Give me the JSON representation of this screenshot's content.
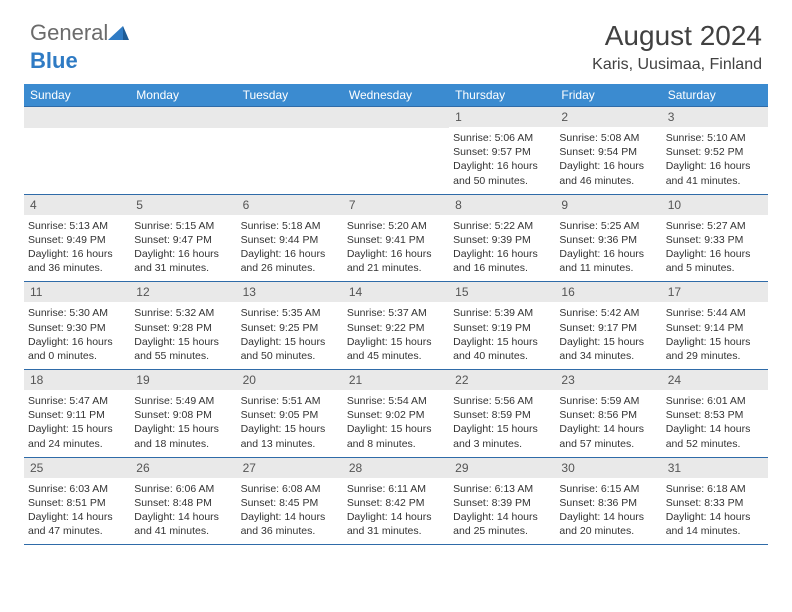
{
  "logo": {
    "text_general": "General",
    "text_blue": "Blue",
    "tri_color": "#2f7bc4"
  },
  "header": {
    "title": "August 2024",
    "location": "Karis, Uusimaa, Finland"
  },
  "colors": {
    "header_bg": "#3b8bd0",
    "header_text": "#ffffff",
    "daynum_bg": "#e9e9e9",
    "border": "#2f6ba8",
    "text": "#333333"
  },
  "weekdays": [
    "Sunday",
    "Monday",
    "Tuesday",
    "Wednesday",
    "Thursday",
    "Friday",
    "Saturday"
  ],
  "weeks": [
    [
      null,
      null,
      null,
      null,
      {
        "n": "1",
        "sr": "Sunrise: 5:06 AM",
        "ss": "Sunset: 9:57 PM",
        "dl": "Daylight: 16 hours and 50 minutes."
      },
      {
        "n": "2",
        "sr": "Sunrise: 5:08 AM",
        "ss": "Sunset: 9:54 PM",
        "dl": "Daylight: 16 hours and 46 minutes."
      },
      {
        "n": "3",
        "sr": "Sunrise: 5:10 AM",
        "ss": "Sunset: 9:52 PM",
        "dl": "Daylight: 16 hours and 41 minutes."
      }
    ],
    [
      {
        "n": "4",
        "sr": "Sunrise: 5:13 AM",
        "ss": "Sunset: 9:49 PM",
        "dl": "Daylight: 16 hours and 36 minutes."
      },
      {
        "n": "5",
        "sr": "Sunrise: 5:15 AM",
        "ss": "Sunset: 9:47 PM",
        "dl": "Daylight: 16 hours and 31 minutes."
      },
      {
        "n": "6",
        "sr": "Sunrise: 5:18 AM",
        "ss": "Sunset: 9:44 PM",
        "dl": "Daylight: 16 hours and 26 minutes."
      },
      {
        "n": "7",
        "sr": "Sunrise: 5:20 AM",
        "ss": "Sunset: 9:41 PM",
        "dl": "Daylight: 16 hours and 21 minutes."
      },
      {
        "n": "8",
        "sr": "Sunrise: 5:22 AM",
        "ss": "Sunset: 9:39 PM",
        "dl": "Daylight: 16 hours and 16 minutes."
      },
      {
        "n": "9",
        "sr": "Sunrise: 5:25 AM",
        "ss": "Sunset: 9:36 PM",
        "dl": "Daylight: 16 hours and 11 minutes."
      },
      {
        "n": "10",
        "sr": "Sunrise: 5:27 AM",
        "ss": "Sunset: 9:33 PM",
        "dl": "Daylight: 16 hours and 5 minutes."
      }
    ],
    [
      {
        "n": "11",
        "sr": "Sunrise: 5:30 AM",
        "ss": "Sunset: 9:30 PM",
        "dl": "Daylight: 16 hours and 0 minutes."
      },
      {
        "n": "12",
        "sr": "Sunrise: 5:32 AM",
        "ss": "Sunset: 9:28 PM",
        "dl": "Daylight: 15 hours and 55 minutes."
      },
      {
        "n": "13",
        "sr": "Sunrise: 5:35 AM",
        "ss": "Sunset: 9:25 PM",
        "dl": "Daylight: 15 hours and 50 minutes."
      },
      {
        "n": "14",
        "sr": "Sunrise: 5:37 AM",
        "ss": "Sunset: 9:22 PM",
        "dl": "Daylight: 15 hours and 45 minutes."
      },
      {
        "n": "15",
        "sr": "Sunrise: 5:39 AM",
        "ss": "Sunset: 9:19 PM",
        "dl": "Daylight: 15 hours and 40 minutes."
      },
      {
        "n": "16",
        "sr": "Sunrise: 5:42 AM",
        "ss": "Sunset: 9:17 PM",
        "dl": "Daylight: 15 hours and 34 minutes."
      },
      {
        "n": "17",
        "sr": "Sunrise: 5:44 AM",
        "ss": "Sunset: 9:14 PM",
        "dl": "Daylight: 15 hours and 29 minutes."
      }
    ],
    [
      {
        "n": "18",
        "sr": "Sunrise: 5:47 AM",
        "ss": "Sunset: 9:11 PM",
        "dl": "Daylight: 15 hours and 24 minutes."
      },
      {
        "n": "19",
        "sr": "Sunrise: 5:49 AM",
        "ss": "Sunset: 9:08 PM",
        "dl": "Daylight: 15 hours and 18 minutes."
      },
      {
        "n": "20",
        "sr": "Sunrise: 5:51 AM",
        "ss": "Sunset: 9:05 PM",
        "dl": "Daylight: 15 hours and 13 minutes."
      },
      {
        "n": "21",
        "sr": "Sunrise: 5:54 AM",
        "ss": "Sunset: 9:02 PM",
        "dl": "Daylight: 15 hours and 8 minutes."
      },
      {
        "n": "22",
        "sr": "Sunrise: 5:56 AM",
        "ss": "Sunset: 8:59 PM",
        "dl": "Daylight: 15 hours and 3 minutes."
      },
      {
        "n": "23",
        "sr": "Sunrise: 5:59 AM",
        "ss": "Sunset: 8:56 PM",
        "dl": "Daylight: 14 hours and 57 minutes."
      },
      {
        "n": "24",
        "sr": "Sunrise: 6:01 AM",
        "ss": "Sunset: 8:53 PM",
        "dl": "Daylight: 14 hours and 52 minutes."
      }
    ],
    [
      {
        "n": "25",
        "sr": "Sunrise: 6:03 AM",
        "ss": "Sunset: 8:51 PM",
        "dl": "Daylight: 14 hours and 47 minutes."
      },
      {
        "n": "26",
        "sr": "Sunrise: 6:06 AM",
        "ss": "Sunset: 8:48 PM",
        "dl": "Daylight: 14 hours and 41 minutes."
      },
      {
        "n": "27",
        "sr": "Sunrise: 6:08 AM",
        "ss": "Sunset: 8:45 PM",
        "dl": "Daylight: 14 hours and 36 minutes."
      },
      {
        "n": "28",
        "sr": "Sunrise: 6:11 AM",
        "ss": "Sunset: 8:42 PM",
        "dl": "Daylight: 14 hours and 31 minutes."
      },
      {
        "n": "29",
        "sr": "Sunrise: 6:13 AM",
        "ss": "Sunset: 8:39 PM",
        "dl": "Daylight: 14 hours and 25 minutes."
      },
      {
        "n": "30",
        "sr": "Sunrise: 6:15 AM",
        "ss": "Sunset: 8:36 PM",
        "dl": "Daylight: 14 hours and 20 minutes."
      },
      {
        "n": "31",
        "sr": "Sunrise: 6:18 AM",
        "ss": "Sunset: 8:33 PM",
        "dl": "Daylight: 14 hours and 14 minutes."
      }
    ]
  ]
}
